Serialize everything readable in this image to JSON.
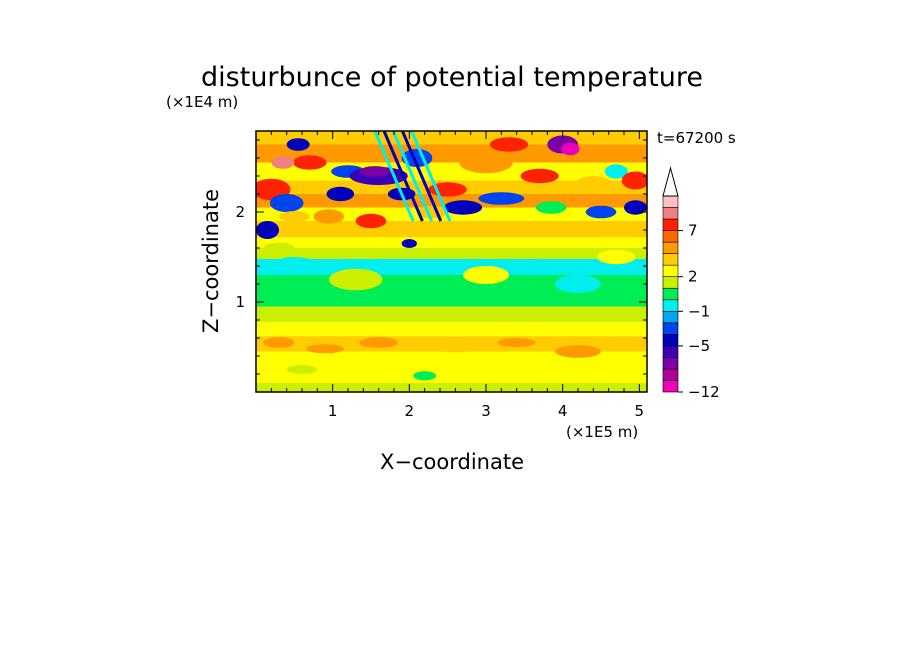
{
  "chart_data": {
    "type": "heatmap",
    "title": "disturbunce of potential temperature",
    "time_label": "t=67200 s",
    "xlabel": "X−coordinate",
    "ylabel": "Z−coordinate",
    "x_scale_label": "(×1E5 m)",
    "y_scale_label": "(×1E4 m)",
    "xlim": [
      0,
      5.1
    ],
    "ylim": [
      0,
      2.9
    ],
    "x_ticks": [
      "1",
      "2",
      "3",
      "4",
      "5"
    ],
    "y_ticks": [
      "1",
      "2"
    ],
    "colorbar": {
      "levels": [
        -12,
        -11,
        -9,
        -7,
        -5,
        -4,
        -3,
        -1,
        0,
        1,
        2,
        3,
        4,
        5,
        7,
        8,
        9
      ],
      "tick_labels": [
        "−12",
        "−5",
        "−1",
        "2",
        "7"
      ],
      "colors": [
        "#ee00bb",
        "#b0009b",
        "#7a00a6",
        "#3a00b8",
        "#0000bb",
        "#0044ee",
        "#00a6f0",
        "#00eeee",
        "#00ee55",
        "#ccee00",
        "#ffff00",
        "#ffcc00",
        "#ff9900",
        "#ff6600",
        "#ff2200",
        "#f08080",
        "#ffc0c0"
      ],
      "extend": "max"
    }
  }
}
